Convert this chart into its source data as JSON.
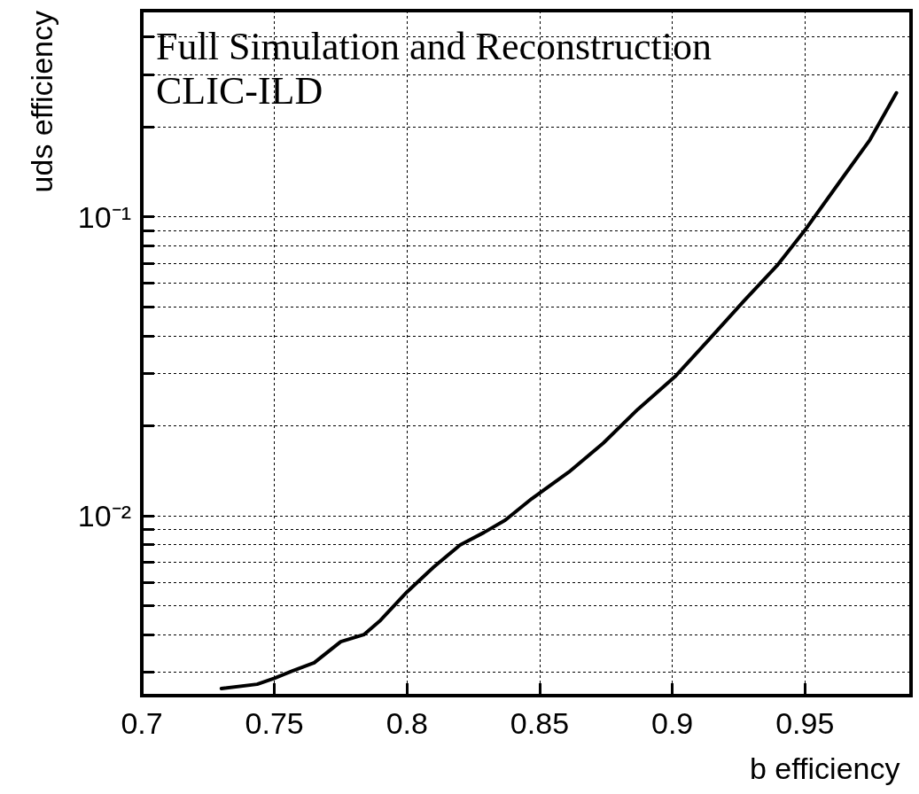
{
  "chart_data": {
    "type": "line",
    "xlabel": "b efficiency",
    "ylabel": "uds efficiency",
    "annotations": [
      "Full Simulation and Reconstruction",
      "CLIC-ILD"
    ],
    "log": "y",
    "grid": true,
    "marker": "none",
    "line_style": "solid",
    "xlim": [
      0.7,
      0.99
    ],
    "xticks": [
      0.7,
      0.75,
      0.8,
      0.85,
      0.9,
      0.95
    ],
    "ylim": [
      0.0025,
      0.49
    ],
    "yticks": [
      {
        "value": 0.003,
        "label": null
      },
      {
        "value": 0.004,
        "label": null
      },
      {
        "value": 0.005,
        "label": null
      },
      {
        "value": 0.006,
        "label": null
      },
      {
        "value": 0.007,
        "label": null
      },
      {
        "value": 0.008,
        "label": null
      },
      {
        "value": 0.009,
        "label": null
      },
      {
        "value": 0.01,
        "label": "10⁻²"
      },
      {
        "value": 0.02,
        "label": null
      },
      {
        "value": 0.03,
        "label": null
      },
      {
        "value": 0.04,
        "label": null
      },
      {
        "value": 0.05,
        "label": null
      },
      {
        "value": 0.06,
        "label": null
      },
      {
        "value": 0.07,
        "label": null
      },
      {
        "value": 0.08,
        "label": null
      },
      {
        "value": 0.09,
        "label": null
      },
      {
        "value": 0.1,
        "label": "10⁻¹"
      },
      {
        "value": 0.2,
        "label": null
      },
      {
        "value": 0.3,
        "label": null
      },
      {
        "value": 0.4,
        "label": null
      }
    ],
    "series": [
      {
        "color": "#000000",
        "x": [
          0.73,
          0.7435,
          0.75,
          0.757,
          0.765,
          0.775,
          0.7837,
          0.79,
          0.8,
          0.81,
          0.82,
          0.829,
          0.837,
          0.847,
          0.861,
          0.874,
          0.887,
          0.901,
          0.914,
          0.927,
          0.9395,
          0.95,
          0.9644,
          0.9745,
          0.9845
        ],
        "values": [
          0.00264,
          0.00273,
          0.00286,
          0.00303,
          0.00322,
          0.00379,
          0.004,
          0.00447,
          0.00556,
          0.00673,
          0.00798,
          0.00879,
          0.00966,
          0.0114,
          0.014,
          0.0175,
          0.0227,
          0.0292,
          0.039,
          0.0523,
          0.0687,
          0.0902,
          0.136,
          0.181,
          0.26
        ]
      }
    ]
  }
}
